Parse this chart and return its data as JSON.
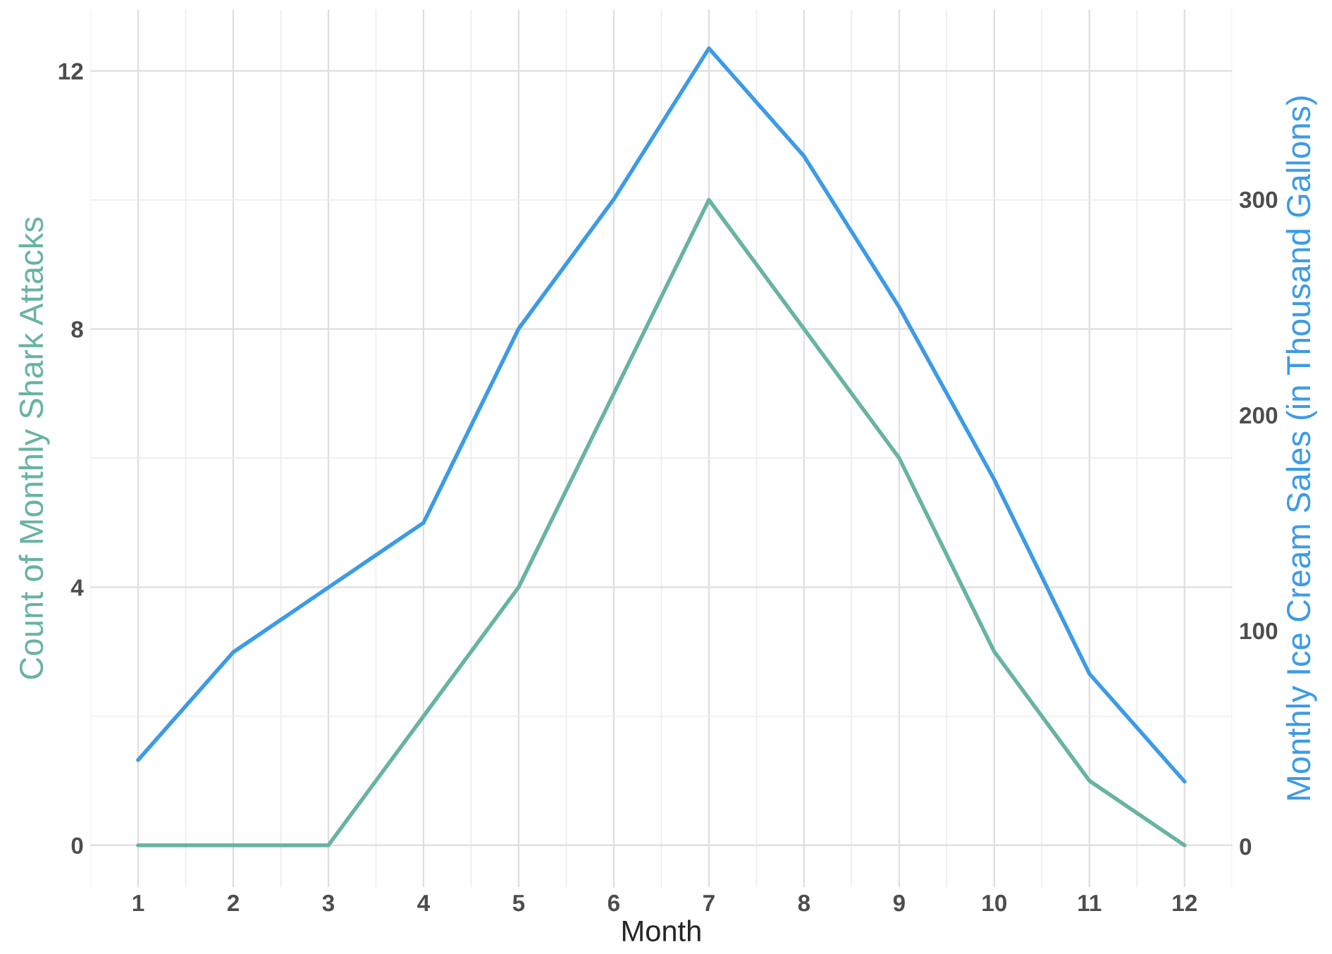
{
  "chart_data": {
    "type": "line",
    "xlabel": "Month",
    "ylabel": "Count of Monthly Shark Attacks",
    "y2label": "Monthly Ice Cream Sales (in Thousand Gallons)",
    "x": [
      1,
      2,
      3,
      4,
      5,
      6,
      7,
      8,
      9,
      10,
      11,
      12
    ],
    "series": [
      {
        "color": "#69b3a2",
        "values": [
          0,
          0,
          0,
          2,
          4,
          7,
          10,
          8,
          6,
          3,
          1,
          0
        ]
      },
      {
        "color": "#3d9be6",
        "axis": "y2",
        "values": [
          40,
          90,
          120,
          150,
          240,
          300,
          370,
          320,
          250,
          170,
          80,
          30
        ]
      }
    ],
    "xlim": [
      0.5,
      12.5
    ],
    "xticks": [
      1,
      2,
      3,
      4,
      5,
      6,
      7,
      8,
      9,
      10,
      11,
      12
    ],
    "ylim": [
      -0.65,
      12.95
    ],
    "yticks": [
      0,
      4,
      8,
      12
    ],
    "y2lim": [
      -19,
      388
    ],
    "y2ticks": [
      0,
      100,
      200,
      300
    ],
    "grid": true,
    "line_style": "solid",
    "marker": "none"
  }
}
